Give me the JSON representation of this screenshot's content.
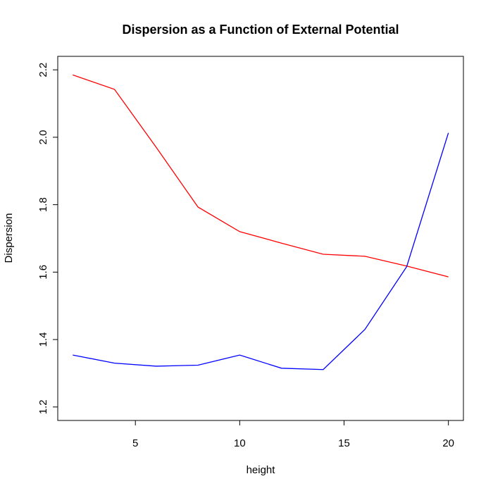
{
  "chart_data": {
    "type": "line",
    "title": "Dispersion as a Function of External Potential",
    "x_label": "height",
    "y_label": "Dispersion",
    "x": [
      2,
      4,
      6,
      8,
      10,
      12,
      14,
      16,
      18,
      20
    ],
    "series": [
      {
        "color": "#ff0000",
        "values": [
          2.185,
          2.142,
          1.97,
          1.793,
          1.72,
          1.686,
          1.653,
          1.647,
          1.618,
          1.586
        ]
      },
      {
        "color": "#0000ff",
        "values": [
          1.354,
          1.33,
          1.321,
          1.324,
          1.354,
          1.315,
          1.311,
          1.43,
          1.616,
          2.013
        ]
      }
    ],
    "xlim": [
      1.28,
      20.72
    ],
    "xticks": [
      5,
      10,
      15,
      20
    ],
    "ylim": [
      1.16,
      2.24
    ],
    "yticks": [
      1.2,
      1.4,
      1.6,
      1.8,
      {
        "value": 2,
        "label": "2.0"
      },
      2.2
    ]
  }
}
